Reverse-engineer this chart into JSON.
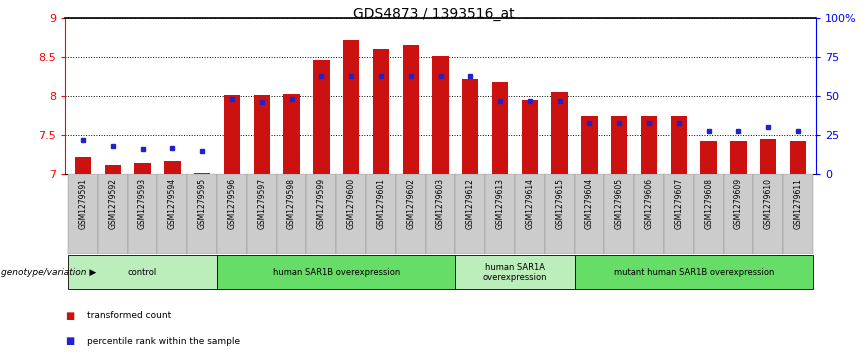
{
  "title": "GDS4873 / 1393516_at",
  "samples": [
    "GSM1279591",
    "GSM1279592",
    "GSM1279593",
    "GSM1279594",
    "GSM1279595",
    "GSM1279596",
    "GSM1279597",
    "GSM1279598",
    "GSM1279599",
    "GSM1279600",
    "GSM1279601",
    "GSM1279602",
    "GSM1279603",
    "GSM1279612",
    "GSM1279613",
    "GSM1279614",
    "GSM1279615",
    "GSM1279604",
    "GSM1279605",
    "GSM1279606",
    "GSM1279607",
    "GSM1279608",
    "GSM1279609",
    "GSM1279610",
    "GSM1279611"
  ],
  "transformed_count": [
    7.22,
    7.12,
    7.15,
    7.17,
    7.02,
    8.02,
    8.02,
    8.03,
    8.47,
    8.72,
    8.6,
    8.65,
    8.52,
    8.22,
    8.18,
    7.95,
    8.05,
    7.75,
    7.75,
    7.75,
    7.75,
    7.43,
    7.43,
    7.45,
    7.43
  ],
  "percentile_rank": [
    22,
    18,
    16,
    17,
    15,
    48,
    46,
    48,
    63,
    63,
    63,
    63,
    63,
    63,
    47,
    47,
    47,
    33,
    33,
    33,
    33,
    28,
    28,
    30,
    28
  ],
  "y_min": 7.0,
  "y_max": 9.0,
  "yticks": [
    7.0,
    7.5,
    8.0,
    8.5,
    9.0
  ],
  "right_yticks": [
    0,
    25,
    50,
    75,
    100
  ],
  "right_ytick_labels": [
    "0",
    "25",
    "50",
    "75",
    "100%"
  ],
  "groups": [
    {
      "label": "control",
      "start": 0,
      "end": 4,
      "color": "#bbeebb"
    },
    {
      "label": "human SAR1B overexpression",
      "start": 5,
      "end": 12,
      "color": "#66dd66"
    },
    {
      "label": "human SAR1A\noverexpression",
      "start": 13,
      "end": 16,
      "color": "#bbeebb"
    },
    {
      "label": "mutant human SAR1B overexpression",
      "start": 17,
      "end": 24,
      "color": "#66dd66"
    }
  ],
  "bar_color": "#cc1111",
  "dot_color": "#2222cc",
  "bg_color": "#ffffff",
  "plot_area_color": "#ffffff",
  "xtick_bg_color": "#cccccc",
  "genotype_label": "genotype/variation",
  "legend_items": [
    {
      "color": "#cc1111",
      "label": "transformed count"
    },
    {
      "color": "#2222cc",
      "label": "percentile rank within the sample"
    }
  ]
}
